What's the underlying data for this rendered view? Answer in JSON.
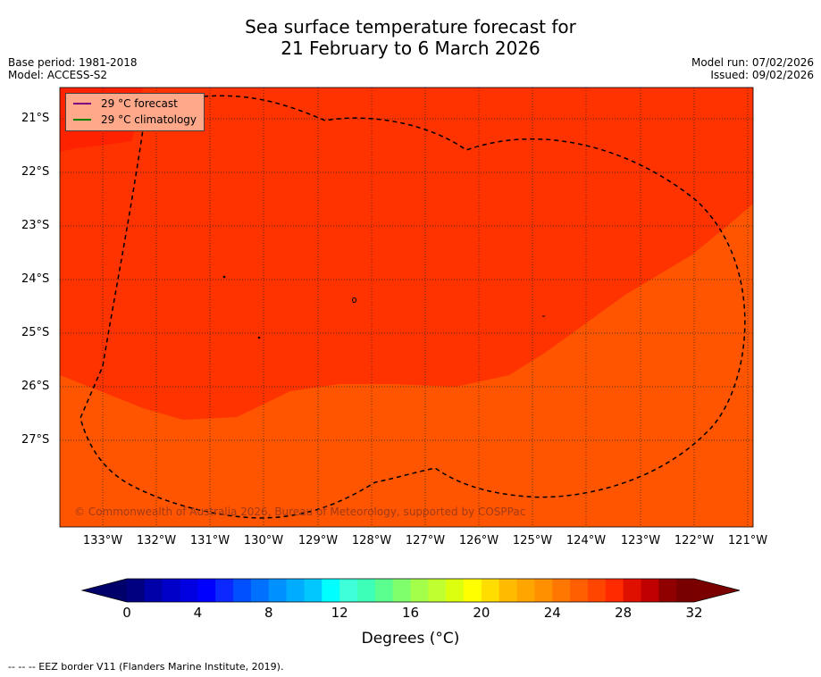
{
  "title": {
    "line1": "Sea surface temperature forecast for",
    "line2": "21 February to 6 March 2026"
  },
  "meta_left": {
    "base_period": "Base period: 1981-2018",
    "model": "Model: ACCESS-S2"
  },
  "meta_right": {
    "model_run": "Model run: 07/02/2026",
    "issued": "Issued: 09/02/2026"
  },
  "map": {
    "lat_ticks": [
      "21°S",
      "22°S",
      "23°S",
      "24°S",
      "25°S",
      "26°S",
      "27°S"
    ],
    "lon_ticks": [
      "133°W",
      "132°W",
      "131°W",
      "130°W",
      "129°W",
      "128°W",
      "127°W",
      "126°W",
      "125°W",
      "124°W",
      "123°W",
      "122°W",
      "121°W"
    ],
    "fill_colors": {
      "warm_29": "#ff3300",
      "temp_28": "#ff5500",
      "temp_30": "#ff2200"
    },
    "copyright": "© Commonwealth of Australia 2026, Bureau of Meteorology, supported by COSPPac"
  },
  "legend": {
    "forecast_label": "29 °C  forecast",
    "forecast_color": "#800080",
    "climatology_label": "29 °C  climatology",
    "climatology_color": "#008000"
  },
  "colorbar": {
    "labels": [
      "0",
      "4",
      "8",
      "12",
      "16",
      "20",
      "24",
      "28",
      "32"
    ],
    "min": 0,
    "max": 32,
    "step": 1,
    "title": "Degrees (°C)",
    "colors": [
      "#000080",
      "#0000a8",
      "#0000c8",
      "#0000e0",
      "#0000ff",
      "#0a28ff",
      "#0050ff",
      "#0070ff",
      "#0090ff",
      "#00acff",
      "#00c8ff",
      "#00ffff",
      "#3effd8",
      "#3dffb8",
      "#5aff90",
      "#7fff6c",
      "#a3ff4a",
      "#c0ff30",
      "#dcff10",
      "#ffff00",
      "#ffdd00",
      "#ffbb00",
      "#ffa500",
      "#ff9000",
      "#ff7700",
      "#ff5f00",
      "#ff4500",
      "#ff2a00",
      "#e01000",
      "#c00000",
      "#900000",
      "#780000"
    ],
    "under_color": "#00006a",
    "over_color": "#7a0000"
  },
  "footnote": "--  --  -- EEZ border V11 (Flanders Marine Institute, 2019)."
}
